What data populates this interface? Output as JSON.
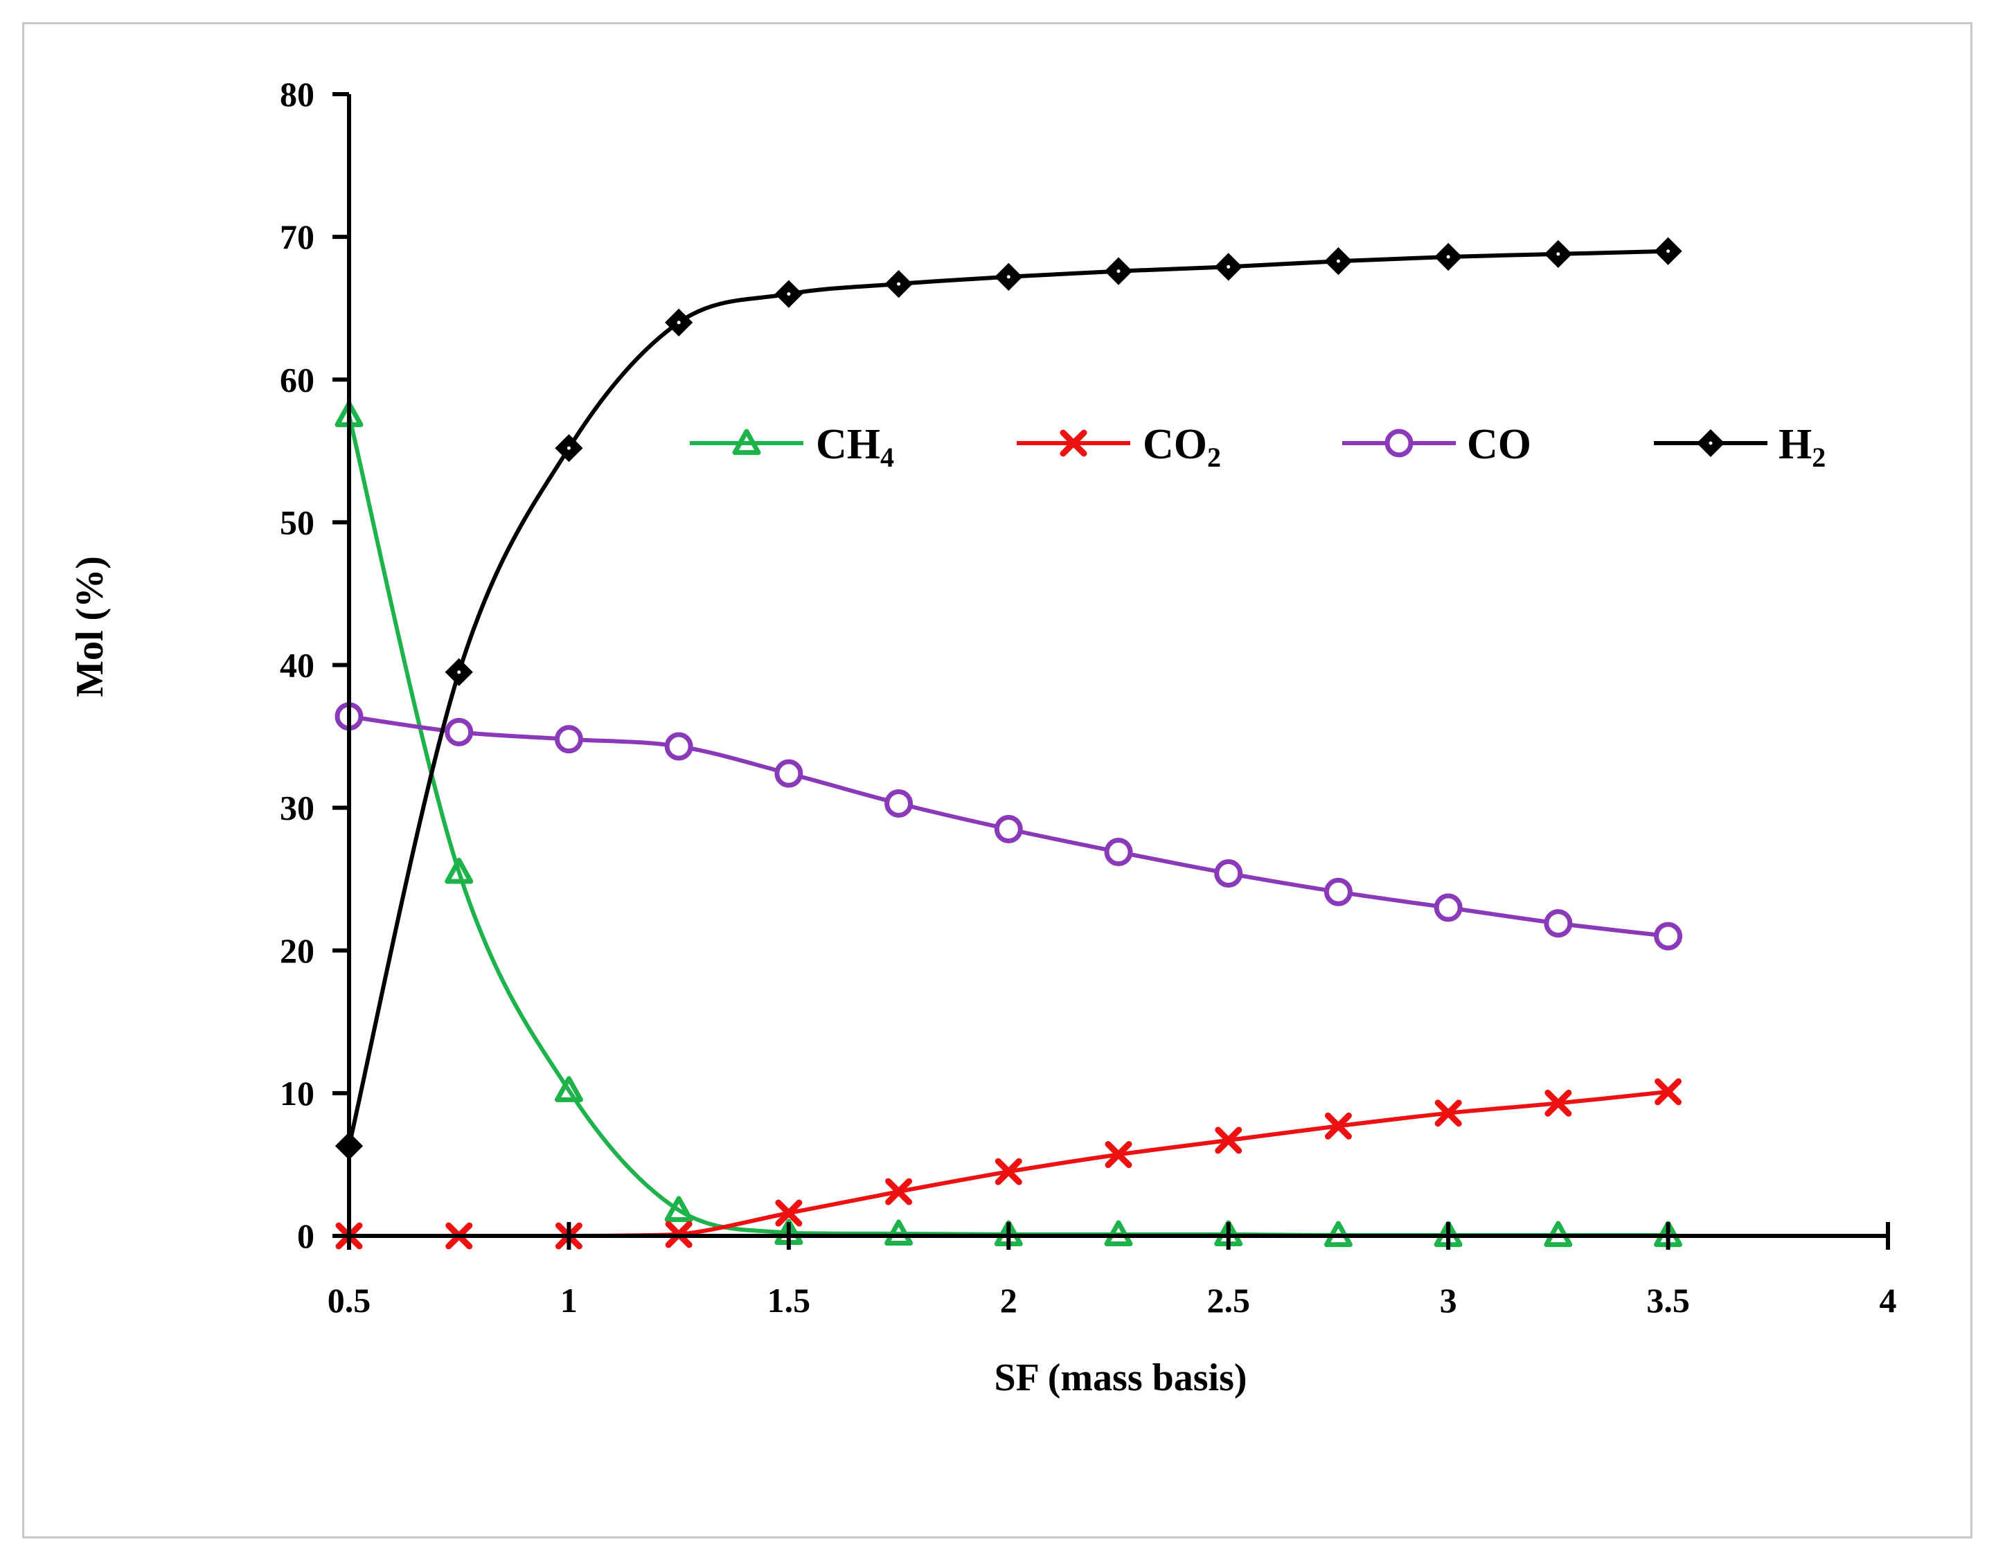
{
  "chart_data": {
    "type": "line",
    "title": "",
    "xlabel": "SF (mass basis)",
    "ylabel": "Mol (%)",
    "xlim": [
      0.5,
      4
    ],
    "ylim": [
      0,
      80
    ],
    "x_ticks": [
      0.5,
      1,
      1.5,
      2,
      2.5,
      3,
      3.5,
      4
    ],
    "x_tick_labels": [
      "0.5",
      "1",
      "1.5",
      "2",
      "2.5",
      "3",
      "3.5",
      "4"
    ],
    "y_ticks": [
      0,
      10,
      20,
      30,
      40,
      50,
      60,
      70,
      80
    ],
    "y_tick_labels": [
      "0",
      "10",
      "20",
      "30",
      "40",
      "50",
      "60",
      "70",
      "80"
    ],
    "grid": false,
    "legend_position": "center-right, inside plot",
    "x": [
      0.5,
      0.75,
      1.0,
      1.25,
      1.5,
      1.75,
      2.0,
      2.25,
      2.5,
      2.75,
      3.0,
      3.25,
      3.5
    ],
    "series": [
      {
        "name": "CH4",
        "label_main": "CH",
        "label_sub": "4",
        "color": "#1db34a",
        "marker": "triangle-open",
        "values": [
          57.5,
          25.5,
          10.2,
          1.8,
          0.2,
          0.15,
          0.1,
          0.1,
          0.1,
          0.05,
          0.05,
          0.05,
          0.05
        ]
      },
      {
        "name": "CO2",
        "label_main": "CO",
        "label_sub": "2",
        "color": "#ee1111",
        "marker": "x",
        "values": [
          0.0,
          0.0,
          0.0,
          0.1,
          1.6,
          3.1,
          4.5,
          5.7,
          6.7,
          7.7,
          8.6,
          9.3,
          10.1
        ]
      },
      {
        "name": "CO",
        "label_main": "CO",
        "label_sub": "",
        "color": "#8a3ab9",
        "marker": "circle-open",
        "values": [
          36.4,
          35.3,
          34.8,
          34.3,
          32.4,
          30.3,
          28.5,
          26.9,
          25.4,
          24.1,
          23.0,
          21.9,
          21.0
        ]
      },
      {
        "name": "H2",
        "label_main": "H",
        "label_sub": "2",
        "color": "#000000",
        "marker": "diamond",
        "values": [
          6.3,
          39.5,
          55.2,
          64.0,
          66.0,
          66.7,
          67.2,
          67.6,
          67.9,
          68.3,
          68.6,
          68.8,
          69.0
        ]
      }
    ]
  }
}
